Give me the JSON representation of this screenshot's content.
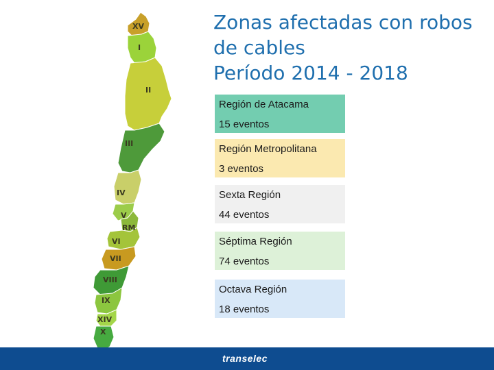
{
  "title": {
    "line1": "Zonas afectadas con robos",
    "line2": "de cables",
    "line3": "Período 2014 - 2018"
  },
  "map": {
    "labels": [
      "XV",
      "I",
      "II",
      "III",
      "IV",
      "V",
      "RM",
      "VI",
      "VII",
      "VIII",
      "IX",
      "XIV",
      "X"
    ],
    "colors": {
      "xv": "#c8a02a",
      "i": "#9bd33a",
      "ii": "#c7cf3a",
      "iii": "#4e9a3a",
      "iv": "#c9cf69",
      "v": "#9ccc4a",
      "rm": "#8cb83a",
      "vi": "#a4c43a",
      "vii": "#c89a20",
      "viii": "#3f9a36",
      "ix": "#8cc63f",
      "xiv": "#a4d64a",
      "x": "#46aa40"
    }
  },
  "regions": [
    {
      "name": "Región de Atacama",
      "events": "15 eventos",
      "color": "#73cdb0"
    },
    {
      "name": "Región Metropolitana",
      "events": "3 eventos",
      "color": "#fbe9b0"
    },
    {
      "name": "Sexta Región",
      "events": "44 eventos",
      "color": "#f0f0f0"
    },
    {
      "name": "Séptima Región",
      "events": "74 eventos",
      "color": "#ddf1d8"
    },
    {
      "name": "Octava Región",
      "events": "18 eventos",
      "color": "#d8e8f8"
    }
  ],
  "footer": {
    "logo": "transelec"
  }
}
